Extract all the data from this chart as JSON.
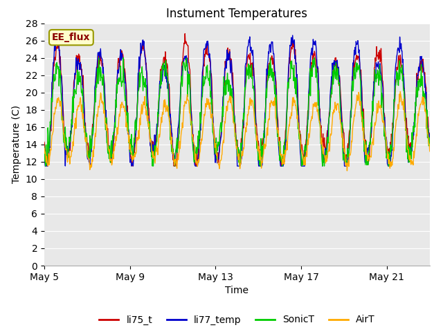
{
  "title": "Instument Temperatures",
  "xlabel": "Time",
  "ylabel": "Temperature (C)",
  "ylim": [
    0,
    28
  ],
  "yticks": [
    0,
    2,
    4,
    6,
    8,
    10,
    12,
    14,
    16,
    18,
    20,
    22,
    24,
    26,
    28
  ],
  "x_tick_labels": [
    "May 5",
    "May 9",
    "May 13",
    "May 17",
    "May 21"
  ],
  "x_tick_positions": [
    0,
    4,
    8,
    12,
    16
  ],
  "total_days": 18,
  "colors": {
    "li75_t": "#cc0000",
    "li77_temp": "#0000cc",
    "SonicT": "#00cc00",
    "AirT": "#ffaa00"
  },
  "legend_labels": [
    "li75_t",
    "li77_temp",
    "SonicT",
    "AirT"
  ],
  "annotation_text": "EE_flux",
  "bg_color": "#e8e8e8",
  "grid_color": "#ffffff",
  "title_fontsize": 12,
  "axis_label_fontsize": 10,
  "tick_fontsize": 10
}
